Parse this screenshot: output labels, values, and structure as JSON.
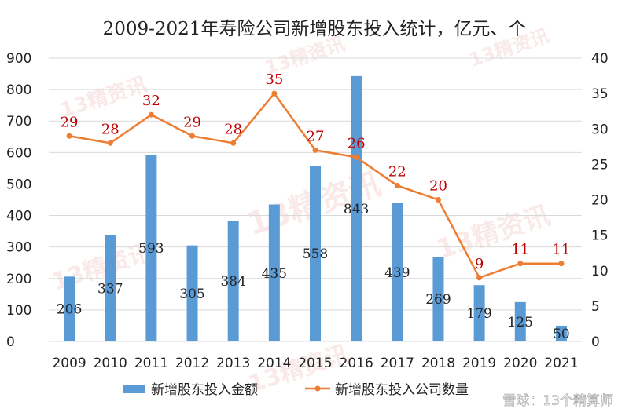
{
  "chart_data": {
    "type": "bar",
    "title": "2009-2021年寿险公司新增股东投入统计，亿元、个",
    "categories": [
      "2009",
      "2010",
      "2011",
      "2012",
      "2013",
      "2014",
      "2015",
      "2016",
      "2017",
      "2018",
      "2019",
      "2020",
      "2021"
    ],
    "series": [
      {
        "name": "新增股东投入金额",
        "type": "bar",
        "axis": "left",
        "color": "#5b9bd5",
        "values": [
          206,
          337,
          593,
          305,
          384,
          435,
          558,
          843,
          439,
          269,
          179,
          125,
          50
        ]
      },
      {
        "name": "新增股东投入公司数量",
        "type": "line",
        "axis": "right",
        "color": "#ed7d31",
        "label_color": "#c00000",
        "values": [
          29,
          28,
          32,
          29,
          28,
          35,
          27,
          26,
          22,
          20,
          9,
          11,
          11
        ]
      }
    ],
    "y_left": {
      "ylim": [
        0,
        900
      ],
      "ticks": [
        0,
        100,
        200,
        300,
        400,
        500,
        600,
        700,
        800,
        900
      ]
    },
    "y_right": {
      "ylim": [
        0,
        40
      ],
      "ticks": [
        0,
        5,
        10,
        15,
        20,
        25,
        30,
        35,
        40
      ]
    },
    "grid": true,
    "legend_position": "bottom"
  },
  "watermark": {
    "text": "13精资讯"
  },
  "credit": {
    "text": "雪球：13个精算师"
  }
}
